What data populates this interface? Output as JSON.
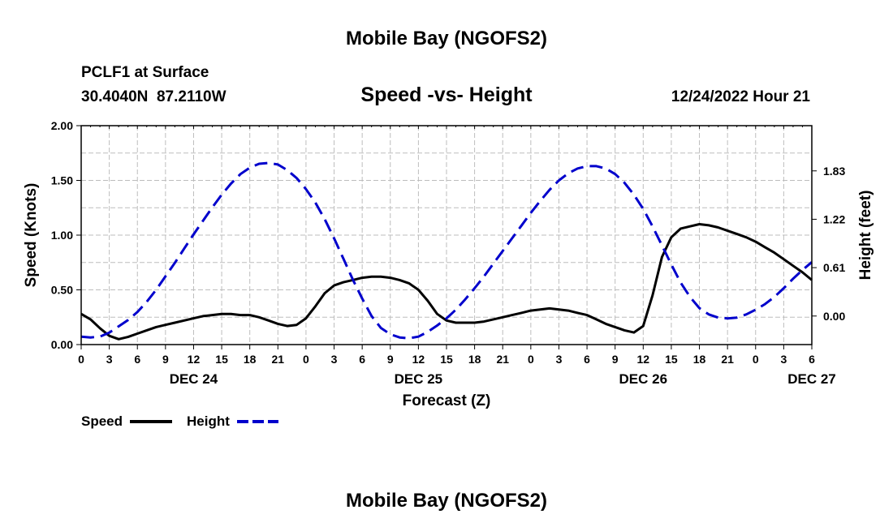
{
  "chart_data": {
    "type": "line",
    "title": "Mobile Bay (NGOFS2)",
    "footer_title": "Mobile Bay (NGOFS2)",
    "subtitle": "Speed -vs- Height",
    "station": "PCLF1 at Surface",
    "location": "30.4040N  87.2110W",
    "datetime": "12/24/2022 Hour 21",
    "xlabel": "Forecast (Z)",
    "ylabel_left": "Speed (Knots)",
    "ylabel_right": "Height (feet)",
    "x_range_hours": [
      0,
      78
    ],
    "x_tick_step_hours": 3,
    "x_tick_labels": [
      "0",
      "3",
      "6",
      "9",
      "12",
      "15",
      "18",
      "21",
      "0",
      "3",
      "6",
      "9",
      "12",
      "15",
      "18",
      "21",
      "0",
      "3",
      "6",
      "9",
      "12",
      "15",
      "18",
      "21",
      "0",
      "3",
      "6"
    ],
    "day_labels": [
      {
        "label": "DEC 24",
        "hour": 12
      },
      {
        "label": "DEC 25",
        "hour": 36
      },
      {
        "label": "DEC 26",
        "hour": 60
      },
      {
        "label": "DEC 27",
        "hour": 78
      }
    ],
    "ylim_left": [
      0,
      2.0
    ],
    "y_ticks_left": [
      "0.00",
      "0.50",
      "1.00",
      "1.50",
      "2.00"
    ],
    "y_tick_values_left": [
      0,
      0.5,
      1.0,
      1.5,
      2.0
    ],
    "ylim_right": [
      -0.36,
      2.4
    ],
    "y_ticks_right": [
      "0.00",
      "0.61",
      "1.22",
      "1.83"
    ],
    "y_tick_values_right": [
      0,
      0.61,
      1.22,
      1.83
    ],
    "grid": true,
    "series": [
      {
        "name": "Speed",
        "axis": "left",
        "color": "#000000",
        "dash": "solid",
        "x": [
          0,
          1,
          2,
          3,
          4,
          5,
          6,
          7,
          8,
          9,
          10,
          11,
          12,
          13,
          14,
          15,
          16,
          17,
          18,
          19,
          20,
          21,
          22,
          23,
          24,
          25,
          26,
          27,
          28,
          29,
          30,
          31,
          32,
          33,
          34,
          35,
          36,
          37,
          38,
          39,
          40,
          41,
          42,
          43,
          44,
          45,
          46,
          47,
          48,
          49,
          50,
          51,
          52,
          53,
          54,
          55,
          56,
          57,
          58,
          59,
          60,
          61,
          62,
          63,
          64,
          65,
          66,
          67,
          68,
          69,
          70,
          71,
          72,
          73,
          74,
          75,
          76,
          77,
          78
        ],
        "values": [
          0.28,
          0.23,
          0.15,
          0.08,
          0.05,
          0.07,
          0.1,
          0.13,
          0.16,
          0.18,
          0.2,
          0.22,
          0.24,
          0.26,
          0.27,
          0.28,
          0.28,
          0.27,
          0.27,
          0.25,
          0.22,
          0.19,
          0.17,
          0.18,
          0.24,
          0.35,
          0.47,
          0.54,
          0.57,
          0.59,
          0.61,
          0.62,
          0.62,
          0.61,
          0.59,
          0.56,
          0.5,
          0.4,
          0.28,
          0.22,
          0.2,
          0.2,
          0.2,
          0.21,
          0.23,
          0.25,
          0.27,
          0.29,
          0.31,
          0.32,
          0.33,
          0.32,
          0.31,
          0.29,
          0.27,
          0.23,
          0.19,
          0.16,
          0.13,
          0.11,
          0.17,
          0.45,
          0.8,
          0.98,
          1.06,
          1.08,
          1.1,
          1.09,
          1.07,
          1.04,
          1.01,
          0.98,
          0.94,
          0.89,
          0.84,
          0.78,
          0.72,
          0.66,
          0.59
        ]
      },
      {
        "name": "Height",
        "axis": "right",
        "color": "#0000cc",
        "dash": "dashed",
        "x": [
          0,
          1,
          2,
          3,
          4,
          5,
          6,
          7,
          8,
          9,
          10,
          11,
          12,
          13,
          14,
          15,
          16,
          17,
          18,
          19,
          20,
          21,
          22,
          23,
          24,
          25,
          26,
          27,
          28,
          29,
          30,
          31,
          32,
          33,
          34,
          35,
          36,
          37,
          38,
          39,
          40,
          41,
          42,
          43,
          44,
          45,
          46,
          47,
          48,
          49,
          50,
          51,
          52,
          53,
          54,
          55,
          56,
          57,
          58,
          59,
          60,
          61,
          62,
          63,
          64,
          65,
          66,
          67,
          68,
          69,
          70,
          71,
          72,
          73,
          74,
          75,
          76,
          77,
          78
        ],
        "values": [
          -0.26,
          -0.27,
          -0.26,
          -0.21,
          -0.13,
          -0.05,
          0.05,
          0.18,
          0.33,
          0.5,
          0.67,
          0.85,
          1.03,
          1.2,
          1.37,
          1.53,
          1.67,
          1.79,
          1.87,
          1.92,
          1.93,
          1.91,
          1.84,
          1.74,
          1.6,
          1.43,
          1.22,
          0.98,
          0.72,
          0.46,
          0.22,
          0.0,
          -0.15,
          -0.23,
          -0.27,
          -0.28,
          -0.26,
          -0.2,
          -0.12,
          -0.03,
          0.08,
          0.21,
          0.35,
          0.5,
          0.66,
          0.82,
          0.98,
          1.14,
          1.3,
          1.45,
          1.59,
          1.71,
          1.8,
          1.86,
          1.89,
          1.89,
          1.86,
          1.79,
          1.68,
          1.53,
          1.35,
          1.13,
          0.89,
          0.65,
          0.42,
          0.24,
          0.1,
          0.02,
          -0.02,
          -0.03,
          -0.02,
          0.02,
          0.08,
          0.15,
          0.24,
          0.35,
          0.47,
          0.58,
          0.68
        ]
      }
    ],
    "legend": [
      {
        "label": "Speed",
        "color": "#000000",
        "dash": "solid"
      },
      {
        "label": "Height",
        "color": "#0000cc",
        "dash": "dashed"
      }
    ]
  }
}
